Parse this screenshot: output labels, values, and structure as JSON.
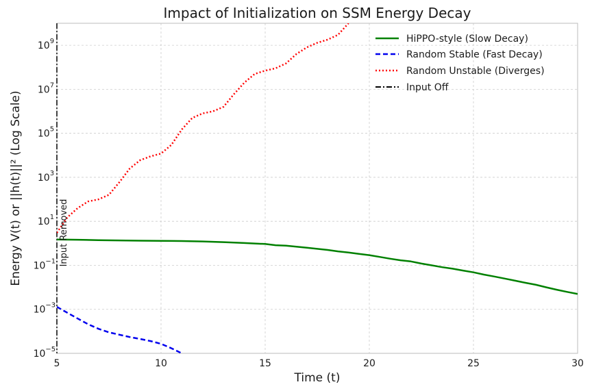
{
  "chart_data": {
    "type": "line",
    "title": "Impact of Initialization on SSM Energy Decay",
    "xlabel": "Time (t)",
    "ylabel": "Energy V(t) or ||h(t)||² (Log Scale)",
    "yscale": "log",
    "xlim": [
      5,
      30
    ],
    "ylim_exponents": [
      -5,
      10
    ],
    "x_ticks": [
      5,
      10,
      15,
      20,
      25,
      30
    ],
    "y_tick_exponents": [
      -5,
      -3,
      -1,
      1,
      3,
      5,
      7,
      9
    ],
    "y_tick_base": "10",
    "grid": true,
    "legend_position": "top-right",
    "series": [
      {
        "name": "HiPPO-style (Slow Decay)",
        "color": "#008000",
        "style": "solid",
        "x": [
          5,
          6,
          7,
          8,
          9,
          10,
          11,
          12,
          13,
          14,
          15,
          15.5,
          16,
          16.5,
          17,
          17.5,
          18,
          18.5,
          19,
          19.5,
          20,
          20.5,
          21,
          21.5,
          22,
          22.5,
          23,
          23.5,
          24,
          24.5,
          25,
          25.5,
          26,
          26.5,
          27,
          27.5,
          28,
          28.5,
          29,
          29.5,
          30
        ],
        "y": [
          1.5,
          1.45,
          1.38,
          1.35,
          1.32,
          1.3,
          1.27,
          1.22,
          1.13,
          1.03,
          0.93,
          0.82,
          0.78,
          0.7,
          0.63,
          0.56,
          0.5,
          0.43,
          0.38,
          0.33,
          0.29,
          0.24,
          0.2,
          0.17,
          0.15,
          0.12,
          0.1,
          0.082,
          0.07,
          0.058,
          0.048,
          0.038,
          0.031,
          0.025,
          0.02,
          0.016,
          0.013,
          0.01,
          0.0078,
          0.0062,
          0.005
        ]
      },
      {
        "name": "Random Stable (Fast Decay)",
        "color": "#0000ee",
        "style": "dashed",
        "x": [
          5,
          5.5,
          6,
          6.5,
          7,
          7.5,
          8,
          8.5,
          9,
          9.5,
          10,
          10.5,
          11
        ],
        "y": [
          0.0013,
          0.0007,
          0.00038,
          0.00021,
          0.00013,
          9e-05,
          7e-05,
          5.5e-05,
          4.5e-05,
          3.6e-05,
          2.7e-05,
          1.7e-05,
          1e-05
        ]
      },
      {
        "name": "Random Unstable (Diverges)",
        "color": "#ff0000",
        "style": "dotted",
        "x": [
          5,
          5.5,
          6,
          6.5,
          7,
          7.5,
          8,
          8.5,
          9,
          9.5,
          10,
          10.5,
          11,
          11.5,
          12,
          12.5,
          13,
          13.5,
          14,
          14.5,
          15,
          15.5,
          16,
          16.5,
          17,
          17.5,
          18,
          18.5,
          19
        ],
        "y": [
          3,
          15,
          40,
          80,
          100,
          160,
          600,
          2500,
          6000,
          9000,
          12000,
          30000,
          150000,
          500000,
          800000,
          1000000,
          1600000,
          6000000,
          20000000,
          50000000,
          70000000,
          90000000,
          150000000,
          400000000,
          800000000,
          1300000000,
          1800000000,
          3000000000,
          10000000000
        ]
      }
    ],
    "vertical_line": {
      "label": "Input Off",
      "x": 5,
      "style": "dashdot",
      "color": "#000000"
    },
    "annotation": {
      "text": "Input Removed",
      "x": 5.3,
      "y": 3
    }
  }
}
